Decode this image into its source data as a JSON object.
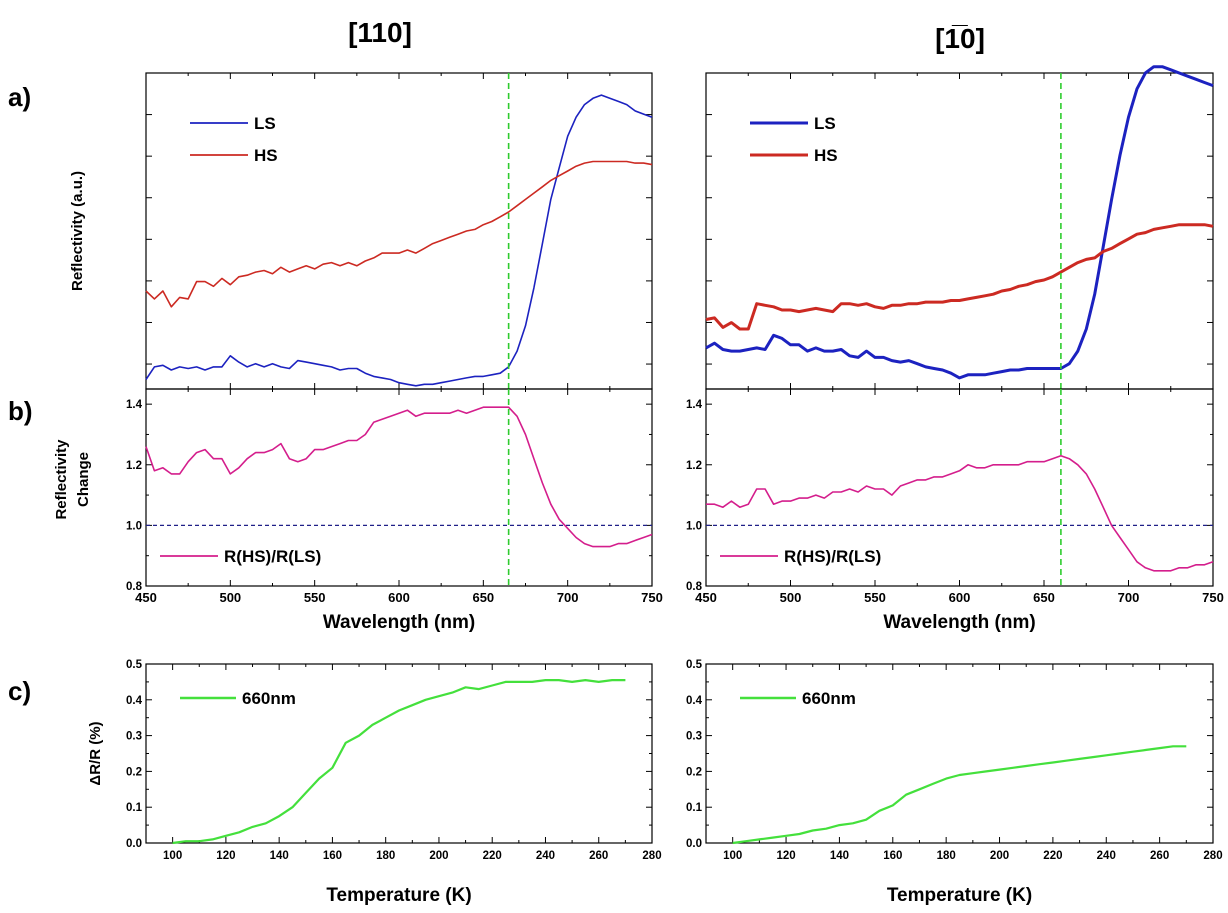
{
  "figure": {
    "column_titles": [
      "[110]",
      "[1̅0]"
    ],
    "panel_letters": [
      "a)",
      "b)",
      "c)"
    ]
  },
  "colors": {
    "ls": "#1c22c0",
    "hs": "#cc2a22",
    "ratio": "#d41e8c",
    "temp": "#44e03c",
    "marker_line": "#2ecc2e",
    "unity_line": "#202088"
  },
  "chart_data": [
    {
      "id": "a-left",
      "type": "line",
      "ylabel": "Reflectivity  (a.u.)",
      "xlim": [
        450,
        750
      ],
      "ylim": [
        0,
        1
      ],
      "y_tick_labels_shown": false,
      "marker_x": 665,
      "legend": {
        "position": "top-left",
        "entries": [
          "LS",
          "HS"
        ]
      },
      "series": [
        {
          "name": "LS",
          "color_key": "ls",
          "x": [
            450,
            455,
            460,
            465,
            470,
            475,
            480,
            485,
            490,
            495,
            500,
            505,
            510,
            515,
            520,
            525,
            530,
            535,
            540,
            545,
            550,
            555,
            560,
            565,
            570,
            575,
            580,
            585,
            590,
            595,
            600,
            605,
            610,
            615,
            620,
            625,
            630,
            635,
            640,
            645,
            650,
            655,
            660,
            665,
            670,
            675,
            680,
            685,
            690,
            695,
            700,
            705,
            710,
            715,
            720,
            725,
            730,
            735,
            740,
            745,
            750
          ],
          "y": [
            0.03,
            0.07,
            0.075,
            0.06,
            0.07,
            0.065,
            0.07,
            0.06,
            0.07,
            0.07,
            0.105,
            0.085,
            0.07,
            0.08,
            0.07,
            0.08,
            0.07,
            0.065,
            0.09,
            0.085,
            0.08,
            0.075,
            0.07,
            0.06,
            0.065,
            0.065,
            0.05,
            0.04,
            0.035,
            0.03,
            0.02,
            0.015,
            0.01,
            0.015,
            0.015,
            0.02,
            0.025,
            0.03,
            0.035,
            0.04,
            0.04,
            0.045,
            0.05,
            0.07,
            0.12,
            0.2,
            0.32,
            0.46,
            0.6,
            0.7,
            0.8,
            0.86,
            0.9,
            0.92,
            0.93,
            0.92,
            0.91,
            0.9,
            0.88,
            0.87,
            0.86
          ]
        },
        {
          "name": "HS",
          "color_key": "hs",
          "x": [
            450,
            455,
            460,
            465,
            470,
            475,
            480,
            485,
            490,
            495,
            500,
            505,
            510,
            515,
            520,
            525,
            530,
            535,
            540,
            545,
            550,
            555,
            560,
            565,
            570,
            575,
            580,
            585,
            590,
            595,
            600,
            605,
            610,
            615,
            620,
            625,
            630,
            635,
            640,
            645,
            650,
            655,
            660,
            665,
            670,
            675,
            680,
            685,
            690,
            695,
            700,
            705,
            710,
            715,
            720,
            725,
            730,
            735,
            740,
            745,
            750
          ],
          "y": [
            0.31,
            0.285,
            0.31,
            0.26,
            0.29,
            0.285,
            0.34,
            0.34,
            0.325,
            0.35,
            0.33,
            0.355,
            0.36,
            0.37,
            0.375,
            0.365,
            0.385,
            0.37,
            0.38,
            0.39,
            0.38,
            0.395,
            0.4,
            0.39,
            0.4,
            0.39,
            0.405,
            0.415,
            0.43,
            0.43,
            0.43,
            0.44,
            0.43,
            0.445,
            0.46,
            0.47,
            0.48,
            0.49,
            0.5,
            0.505,
            0.52,
            0.53,
            0.545,
            0.56,
            0.58,
            0.6,
            0.62,
            0.64,
            0.66,
            0.675,
            0.69,
            0.705,
            0.715,
            0.72,
            0.72,
            0.72,
            0.72,
            0.72,
            0.715,
            0.715,
            0.71
          ]
        }
      ]
    },
    {
      "id": "a-right",
      "type": "line",
      "ylabel": "",
      "xlim": [
        450,
        750
      ],
      "ylim": [
        0,
        1
      ],
      "y_tick_labels_shown": false,
      "marker_x": 660,
      "legend": {
        "position": "top-left",
        "entries": [
          "LS",
          "HS"
        ]
      },
      "series": [
        {
          "name": "LS",
          "color_key": "ls",
          "x": [
            450,
            455,
            460,
            465,
            470,
            475,
            480,
            485,
            490,
            495,
            500,
            505,
            510,
            515,
            520,
            525,
            530,
            535,
            540,
            545,
            550,
            555,
            560,
            565,
            570,
            575,
            580,
            585,
            590,
            595,
            600,
            605,
            610,
            615,
            620,
            625,
            630,
            635,
            640,
            645,
            650,
            655,
            660,
            665,
            670,
            675,
            680,
            685,
            690,
            695,
            700,
            705,
            710,
            715,
            720,
            725,
            730,
            735,
            740,
            745,
            750
          ],
          "y": [
            0.13,
            0.145,
            0.125,
            0.12,
            0.12,
            0.125,
            0.13,
            0.125,
            0.17,
            0.16,
            0.14,
            0.14,
            0.12,
            0.13,
            0.12,
            0.12,
            0.125,
            0.105,
            0.1,
            0.12,
            0.1,
            0.1,
            0.09,
            0.085,
            0.09,
            0.08,
            0.07,
            0.065,
            0.06,
            0.05,
            0.035,
            0.045,
            0.045,
            0.045,
            0.05,
            0.055,
            0.06,
            0.06,
            0.065,
            0.065,
            0.065,
            0.065,
            0.065,
            0.08,
            0.12,
            0.19,
            0.3,
            0.45,
            0.6,
            0.74,
            0.86,
            0.95,
            1.0,
            1.02,
            1.02,
            1.01,
            1.0,
            0.99,
            0.98,
            0.97,
            0.96
          ]
        },
        {
          "name": "HS",
          "color_key": "hs",
          "x": [
            450,
            455,
            460,
            465,
            470,
            475,
            480,
            485,
            490,
            495,
            500,
            505,
            510,
            515,
            520,
            525,
            530,
            535,
            540,
            545,
            550,
            555,
            560,
            565,
            570,
            575,
            580,
            585,
            590,
            595,
            600,
            605,
            610,
            615,
            620,
            625,
            630,
            635,
            640,
            645,
            650,
            655,
            660,
            665,
            670,
            675,
            680,
            685,
            690,
            695,
            700,
            705,
            710,
            715,
            720,
            725,
            730,
            735,
            740,
            745,
            750
          ],
          "y": [
            0.22,
            0.225,
            0.195,
            0.21,
            0.19,
            0.19,
            0.27,
            0.265,
            0.26,
            0.25,
            0.25,
            0.245,
            0.25,
            0.255,
            0.25,
            0.245,
            0.27,
            0.27,
            0.265,
            0.27,
            0.26,
            0.255,
            0.265,
            0.265,
            0.27,
            0.27,
            0.275,
            0.275,
            0.275,
            0.28,
            0.28,
            0.285,
            0.29,
            0.295,
            0.3,
            0.31,
            0.315,
            0.325,
            0.33,
            0.34,
            0.345,
            0.355,
            0.37,
            0.385,
            0.4,
            0.41,
            0.415,
            0.435,
            0.445,
            0.46,
            0.475,
            0.49,
            0.495,
            0.505,
            0.51,
            0.515,
            0.52,
            0.52,
            0.52,
            0.52,
            0.515
          ]
        }
      ]
    },
    {
      "id": "b-left",
      "type": "line",
      "ylabel": [
        "Reflectivity",
        "Change"
      ],
      "xlabel": "Wavelength (nm)",
      "xlim": [
        450,
        750
      ],
      "ylim": [
        0.8,
        1.45
      ],
      "x_ticks": [
        450,
        500,
        550,
        600,
        650,
        700,
        750
      ],
      "y_ticks": [
        0.8,
        1.0,
        1.2,
        1.4
      ],
      "unity_line": 1.0,
      "marker_x": 665,
      "legend": {
        "position": "bottom-left",
        "entries": [
          "R(HS)/R(LS)"
        ]
      },
      "series": [
        {
          "name": "R(HS)/R(LS)",
          "color_key": "ratio",
          "x": [
            450,
            455,
            460,
            465,
            470,
            475,
            480,
            485,
            490,
            495,
            500,
            505,
            510,
            515,
            520,
            525,
            530,
            535,
            540,
            545,
            550,
            555,
            560,
            565,
            570,
            575,
            580,
            585,
            590,
            595,
            600,
            605,
            610,
            615,
            620,
            625,
            630,
            635,
            640,
            645,
            650,
            655,
            660,
            665,
            670,
            675,
            680,
            685,
            690,
            695,
            700,
            705,
            710,
            715,
            720,
            725,
            730,
            735,
            740,
            745,
            750
          ],
          "y": [
            1.26,
            1.18,
            1.19,
            1.17,
            1.17,
            1.21,
            1.24,
            1.25,
            1.22,
            1.22,
            1.17,
            1.19,
            1.22,
            1.24,
            1.24,
            1.25,
            1.27,
            1.22,
            1.21,
            1.22,
            1.25,
            1.25,
            1.26,
            1.27,
            1.28,
            1.28,
            1.3,
            1.34,
            1.35,
            1.36,
            1.37,
            1.38,
            1.36,
            1.37,
            1.37,
            1.37,
            1.37,
            1.38,
            1.37,
            1.38,
            1.39,
            1.39,
            1.39,
            1.39,
            1.36,
            1.3,
            1.22,
            1.14,
            1.07,
            1.02,
            0.99,
            0.96,
            0.94,
            0.93,
            0.93,
            0.93,
            0.94,
            0.94,
            0.95,
            0.96,
            0.97
          ]
        }
      ]
    },
    {
      "id": "b-right",
      "type": "line",
      "ylabel": "",
      "xlabel": "Wavelength (nm)",
      "xlim": [
        450,
        750
      ],
      "ylim": [
        0.8,
        1.45
      ],
      "x_ticks": [
        450,
        500,
        550,
        600,
        650,
        700,
        750
      ],
      "y_ticks": [
        0.8,
        1.0,
        1.2,
        1.4
      ],
      "unity_line": 1.0,
      "marker_x": 660,
      "legend": {
        "position": "bottom-left",
        "entries": [
          "R(HS)/R(LS)"
        ]
      },
      "series": [
        {
          "name": "R(HS)/R(LS)",
          "color_key": "ratio",
          "x": [
            450,
            455,
            460,
            465,
            470,
            475,
            480,
            485,
            490,
            495,
            500,
            505,
            510,
            515,
            520,
            525,
            530,
            535,
            540,
            545,
            550,
            555,
            560,
            565,
            570,
            575,
            580,
            585,
            590,
            595,
            600,
            605,
            610,
            615,
            620,
            625,
            630,
            635,
            640,
            645,
            650,
            655,
            660,
            665,
            670,
            675,
            680,
            685,
            690,
            695,
            700,
            705,
            710,
            715,
            720,
            725,
            730,
            735,
            740,
            745,
            750
          ],
          "y": [
            1.07,
            1.07,
            1.06,
            1.08,
            1.06,
            1.07,
            1.12,
            1.12,
            1.07,
            1.08,
            1.08,
            1.09,
            1.09,
            1.1,
            1.09,
            1.11,
            1.11,
            1.12,
            1.11,
            1.13,
            1.12,
            1.12,
            1.1,
            1.13,
            1.14,
            1.15,
            1.15,
            1.16,
            1.16,
            1.17,
            1.18,
            1.2,
            1.19,
            1.19,
            1.2,
            1.2,
            1.2,
            1.2,
            1.21,
            1.21,
            1.21,
            1.22,
            1.23,
            1.22,
            1.2,
            1.17,
            1.12,
            1.06,
            1.0,
            0.96,
            0.92,
            0.88,
            0.86,
            0.85,
            0.85,
            0.85,
            0.86,
            0.86,
            0.87,
            0.87,
            0.88
          ]
        }
      ]
    },
    {
      "id": "c-left",
      "type": "line",
      "ylabel": "ΔR/R (%)",
      "xlabel": "Temperature (K)",
      "xlim": [
        90,
        280
      ],
      "ylim": [
        0,
        0.5
      ],
      "x_ticks": [
        100,
        120,
        140,
        160,
        180,
        200,
        220,
        240,
        260,
        280
      ],
      "y_ticks": [
        0.0,
        0.1,
        0.2,
        0.3,
        0.4,
        0.5
      ],
      "legend": {
        "position": "top-left",
        "entries": [
          "660nm"
        ]
      },
      "series": [
        {
          "name": "660nm",
          "color_key": "temp",
          "x": [
            100,
            105,
            110,
            115,
            120,
            125,
            130,
            135,
            140,
            145,
            150,
            155,
            160,
            165,
            170,
            175,
            180,
            185,
            190,
            195,
            200,
            205,
            210,
            215,
            220,
            225,
            230,
            235,
            240,
            245,
            250,
            255,
            260,
            265,
            270
          ],
          "y": [
            0.0,
            0.005,
            0.005,
            0.01,
            0.02,
            0.03,
            0.045,
            0.055,
            0.075,
            0.1,
            0.14,
            0.18,
            0.21,
            0.28,
            0.3,
            0.33,
            0.35,
            0.37,
            0.385,
            0.4,
            0.41,
            0.42,
            0.435,
            0.43,
            0.44,
            0.45,
            0.45,
            0.45,
            0.455,
            0.455,
            0.45,
            0.455,
            0.45,
            0.455,
            0.455
          ]
        }
      ]
    },
    {
      "id": "c-right",
      "type": "line",
      "ylabel": "",
      "xlabel": "Temperature (K)",
      "xlim": [
        90,
        280
      ],
      "ylim": [
        0,
        0.5
      ],
      "x_ticks": [
        100,
        120,
        140,
        160,
        180,
        200,
        220,
        240,
        260,
        280
      ],
      "y_ticks": [
        0.0,
        0.1,
        0.2,
        0.3,
        0.4,
        0.5
      ],
      "legend": {
        "position": "top-left",
        "entries": [
          "660nm"
        ]
      },
      "series": [
        {
          "name": "660nm",
          "color_key": "temp",
          "x": [
            100,
            105,
            110,
            115,
            120,
            125,
            130,
            135,
            140,
            145,
            150,
            155,
            160,
            165,
            170,
            175,
            180,
            185,
            190,
            195,
            200,
            205,
            210,
            215,
            220,
            225,
            230,
            235,
            240,
            245,
            250,
            255,
            260,
            265,
            270
          ],
          "y": [
            0.0,
            0.005,
            0.01,
            0.015,
            0.02,
            0.025,
            0.035,
            0.04,
            0.05,
            0.055,
            0.065,
            0.09,
            0.105,
            0.135,
            0.15,
            0.165,
            0.18,
            0.19,
            0.195,
            0.2,
            0.205,
            0.21,
            0.215,
            0.22,
            0.225,
            0.23,
            0.235,
            0.24,
            0.245,
            0.25,
            0.255,
            0.26,
            0.265,
            0.27,
            0.27
          ]
        }
      ]
    }
  ]
}
